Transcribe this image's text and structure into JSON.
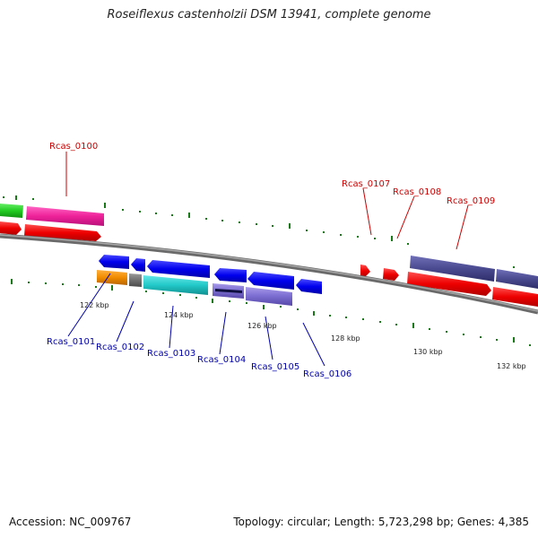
{
  "title": "Roseiflexus castenholzii DSM 13941, complete genome",
  "footer": {
    "accession": "Accession: NC_009767",
    "summary": "Topology: circular; Length: 5,723,298 bp; Genes: 4,385"
  },
  "kbp_labels": [
    "122 kbp",
    "124 kbp",
    "126 kbp",
    "128 kbp",
    "130 kbp",
    "132 kbp"
  ],
  "gene_tags_top": [
    "Rcas_0100",
    "Rcas_0107",
    "Rcas_0108",
    "Rcas_0109"
  ],
  "gene_tags_bottom": [
    "Rcas_0101",
    "Rcas_0102",
    "Rcas_0103",
    "Rcas_0104",
    "Rcas_0105",
    "Rcas_0106"
  ],
  "colors": {
    "top_tag": "#cc0000",
    "bottom_tag": "#0000aa",
    "backbone": "#808080",
    "tick": "#1a7a1a"
  }
}
